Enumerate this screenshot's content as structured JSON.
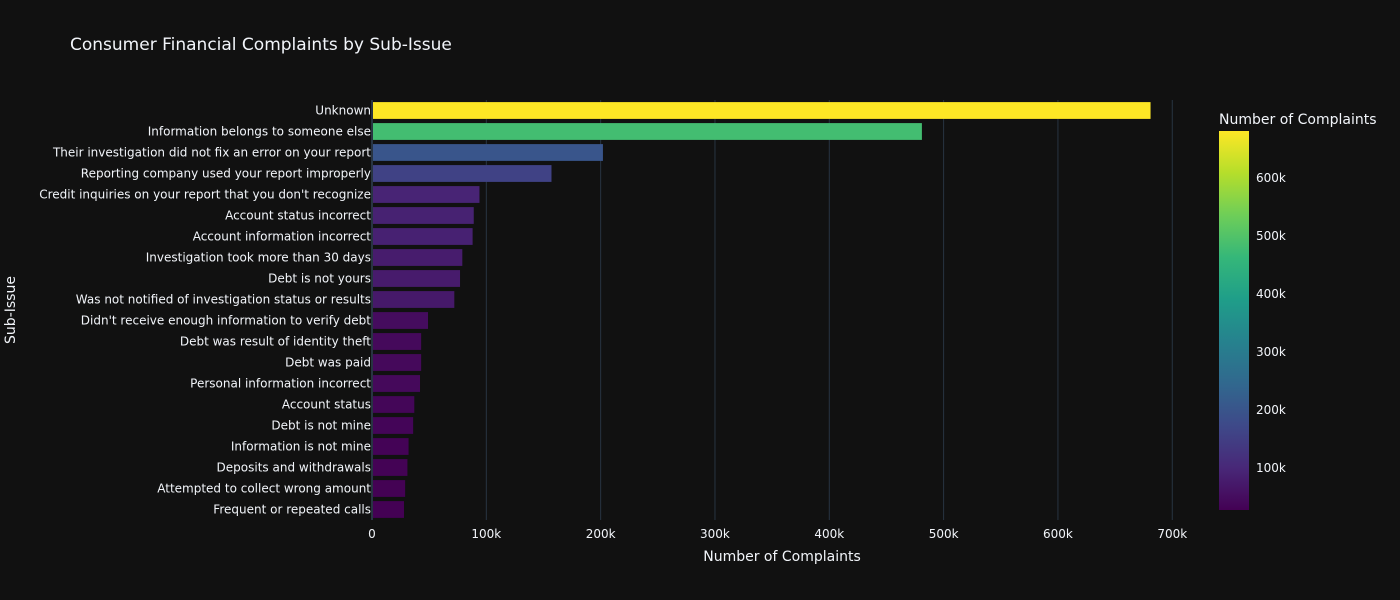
{
  "chart_data": {
    "type": "bar",
    "orientation": "horizontal",
    "title": "Consumer Financial Complaints by Sub-Issue",
    "xlabel": "Number of Complaints",
    "ylabel": "Sub-Issue",
    "xlim": [
      0,
      740000
    ],
    "x_ticks": [
      0,
      100000,
      200000,
      300000,
      400000,
      500000,
      600000,
      700000
    ],
    "x_tick_labels": [
      "0",
      "100k",
      "200k",
      "300k",
      "400k",
      "500k",
      "600k",
      "700k"
    ],
    "grid": true,
    "categories": [
      "Unknown",
      "Information belongs to someone else",
      "Their investigation did not fix an error on your report",
      "Reporting company used your report improperly",
      "Credit inquiries on your report that you don't recognize",
      "Account status incorrect",
      "Account information incorrect",
      "Investigation took more than 30 days",
      "Debt is not yours",
      "Was not notified of investigation status or results",
      "Didn't receive enough information to verify debt",
      "Debt was result of identity theft",
      "Debt was paid",
      "Personal information incorrect",
      "Account status",
      "Debt is not mine",
      "Information is not mine",
      "Deposits and withdrawals",
      "Attempted to collect wrong amount",
      "Frequent or repeated calls"
    ],
    "values": [
      681000,
      481000,
      202000,
      157000,
      94000,
      89000,
      88000,
      79000,
      77000,
      72000,
      49000,
      43000,
      43000,
      42000,
      37000,
      36000,
      32000,
      31000,
      29000,
      28000
    ],
    "colorscale": "Viridis",
    "color_range": [
      28000,
      681000
    ],
    "colorbar": {
      "title": "Number of Complaints",
      "tick_values": [
        100000,
        200000,
        300000,
        400000,
        500000,
        600000
      ],
      "tick_labels": [
        "100k",
        "200k",
        "300k",
        "400k",
        "500k",
        "600k"
      ]
    }
  },
  "colors": {
    "background": "#111111",
    "text": "#f2f5fa",
    "grid": "#283442"
  }
}
